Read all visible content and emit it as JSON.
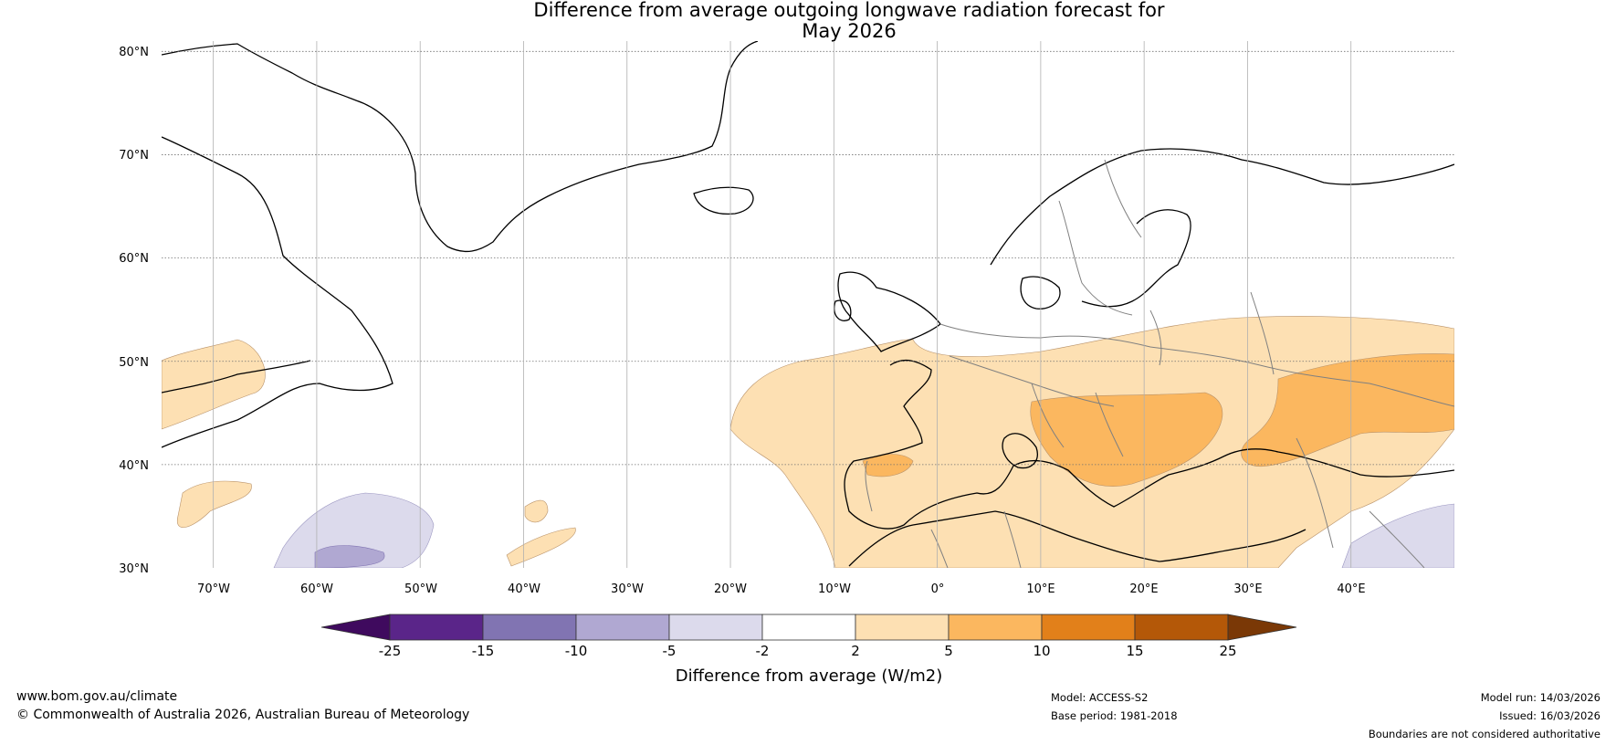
{
  "title": {
    "line1": "Difference from average outgoing longwave radiation forecast for",
    "line2": "May 2026"
  },
  "map": {
    "lat_labels": [
      "80°N",
      "70°N",
      "60°N",
      "50°N",
      "40°N",
      "30°N"
    ],
    "lon_labels": [
      "70°W",
      "60°W",
      "50°W",
      "40°W",
      "30°W",
      "20°W",
      "10°W",
      "0°",
      "10°E",
      "20°E",
      "30°E",
      "40°E"
    ],
    "extent": {
      "lon_min": -75,
      "lon_max": 50,
      "lat_min": 30,
      "lat_max": 81
    }
  },
  "colorbar": {
    "title": "Difference from average (W/m2)",
    "tick_labels": [
      "-25",
      "-15",
      "-10",
      "-5",
      "-2",
      "2",
      "5",
      "10",
      "15",
      "25"
    ],
    "colors": [
      "#3f0a5e",
      "#5a2589",
      "#8174b2",
      "#b0a8d2",
      "#dcdaec",
      "#ffffff",
      "#fde0b3",
      "#fbb75f",
      "#e2801a",
      "#b45808",
      "#7a3806"
    ]
  },
  "footer": {
    "url": "www.bom.gov.au/climate",
    "copyright": "© Commonwealth of Australia 2026, Australian Bureau of Meteorology",
    "model": "Model: ACCESS-S2",
    "base_period": "Base period: 1981-2018",
    "model_run": "Model run: 14/03/2026",
    "issued": "Issued: 16/03/2026",
    "disclaimer": "Boundaries are not considered authoritative"
  }
}
